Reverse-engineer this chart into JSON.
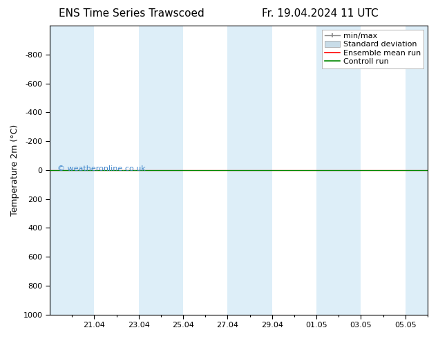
{
  "title_left": "ENS Time Series Trawscoed",
  "title_right": "Fr. 19.04.2024 11 UTC",
  "ylabel": "Temperature 2m (°C)",
  "ylim_bottom": 1000,
  "ylim_top": -1000,
  "yticks": [
    -800,
    -600,
    -400,
    -200,
    0,
    200,
    400,
    600,
    800,
    1000
  ],
  "xtick_labels": [
    "21.04",
    "23.04",
    "25.04",
    "27.04",
    "29.04",
    "01.05",
    "03.05",
    "05.05"
  ],
  "xtick_positions": [
    2,
    4,
    6,
    8,
    10,
    12,
    14,
    16
  ],
  "xlim": [
    0,
    17
  ],
  "watermark": "© weatheronline.co.uk",
  "watermark_color": "#4488cc",
  "bg_color": "#ffffff",
  "plot_bg_color": "#ffffff",
  "band_color": "#ddeef8",
  "band_pairs": [
    [
      0,
      2
    ],
    [
      4,
      6
    ],
    [
      8,
      10
    ],
    [
      12,
      14
    ],
    [
      16,
      17
    ]
  ],
  "control_run_y": 0,
  "ensemble_mean_y": 0,
  "control_run_color": "#008800",
  "ensemble_mean_color": "#ff0000",
  "minmax_color": "#888888",
  "stddev_color": "#c8dce8",
  "legend_labels": [
    "min/max",
    "Standard deviation",
    "Ensemble mean run",
    "Controll run"
  ],
  "title_fontsize": 11,
  "axis_label_fontsize": 9,
  "tick_fontsize": 8,
  "legend_fontsize": 8,
  "font_family": "DejaVu Sans"
}
